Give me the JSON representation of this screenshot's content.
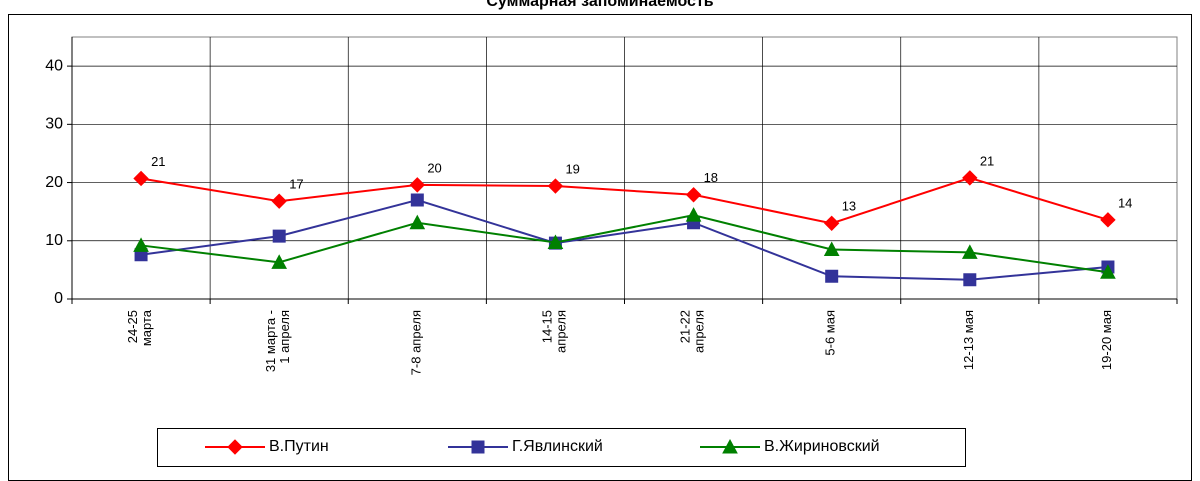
{
  "chart_data": {
    "type": "line",
    "title": "Суммарная запоминаемость",
    "categories": [
      "24-25\nмарта",
      "31 марта -\n1 апреля",
      "7-8 апреля",
      "14-15\nапреля",
      "21-22\nапреля",
      "5-6 мая",
      "12-13 мая",
      "19-20 мая"
    ],
    "series": [
      {
        "name": "В.Путин",
        "color": "#ff0000",
        "marker": "diamond",
        "values": [
          20.7,
          16.8,
          19.6,
          19.4,
          17.9,
          13,
          20.8,
          13.6
        ],
        "value_labels": [
          "21",
          "17",
          "20",
          "19",
          "18",
          "13",
          "21",
          "14"
        ]
      },
      {
        "name": "Г.Явлинский",
        "color": "#333399",
        "marker": "square",
        "values": [
          7.6,
          10.8,
          17,
          9.6,
          13.1,
          3.9,
          3.3,
          5.5
        ]
      },
      {
        "name": "В.Жириновский",
        "color": "#008000",
        "marker": "triangle",
        "values": [
          9.2,
          6.3,
          13.1,
          9.7,
          14.4,
          8.5,
          8,
          4.6
        ]
      }
    ],
    "ylim": [
      0,
      45
    ],
    "yticks": [
      0,
      10,
      20,
      30,
      40
    ],
    "grid": true,
    "legend": "bottom"
  }
}
